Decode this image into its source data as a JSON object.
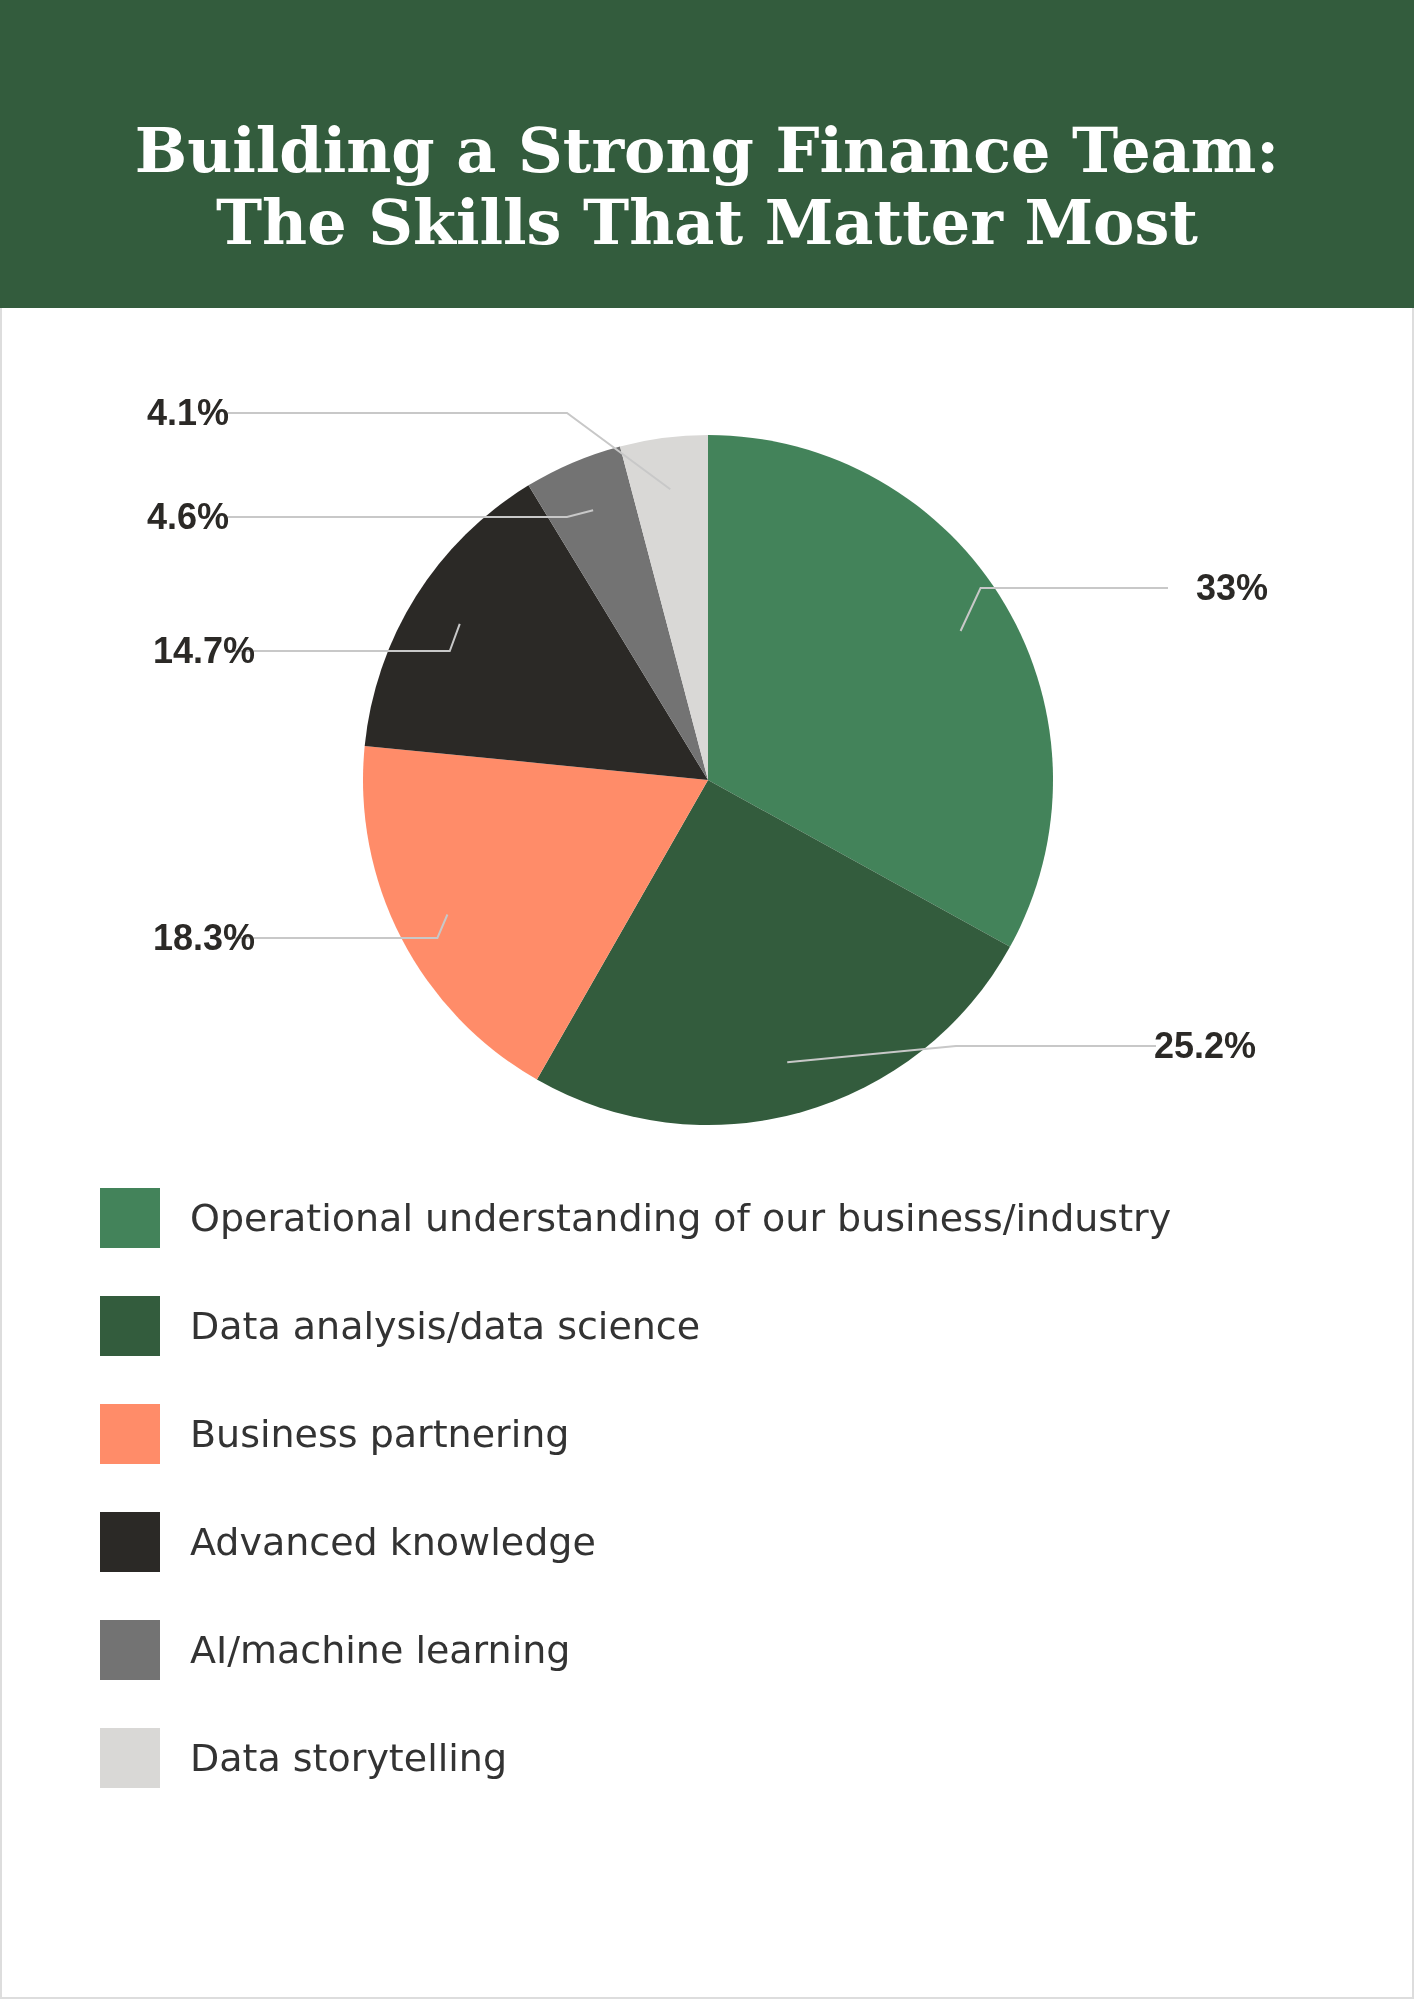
{
  "chart_data": {
    "type": "pie",
    "title": "Building a Strong Finance Team: The Skills That Matter Most",
    "categories": [
      "Operational understanding of our business/industry",
      "Data analysis/data science",
      "Business partnering",
      "Advanced knowledge",
      "AI/machine learning",
      "Data storytelling"
    ],
    "values": [
      33,
      25.2,
      18.3,
      14.7,
      4.6,
      4.1
    ],
    "value_labels": [
      "33%",
      "25.2%",
      "18.3%",
      "14.7%",
      "4.6%",
      "4.1%"
    ],
    "colors": [
      "#43835a",
      "#335c3d",
      "#ff8c69",
      "#2b2926",
      "#737373",
      "#d9d8d6"
    ],
    "legend": "bottom"
  }
}
